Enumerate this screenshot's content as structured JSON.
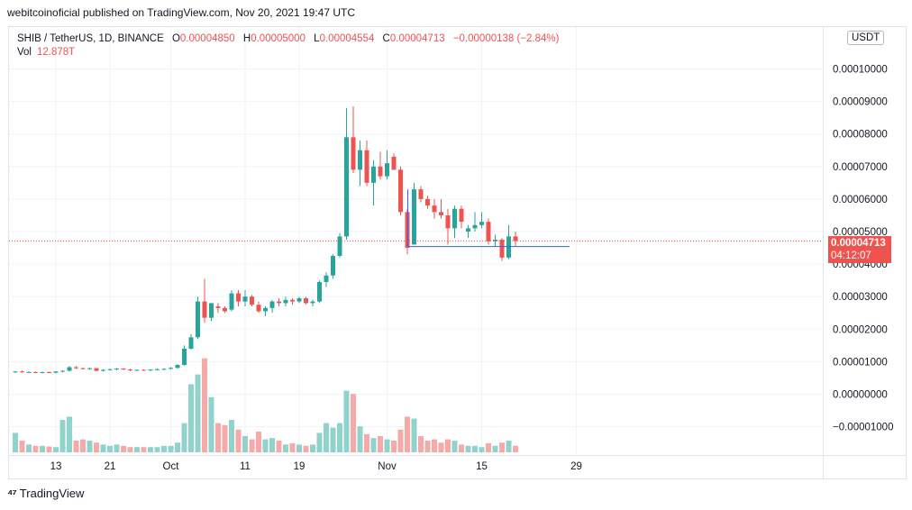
{
  "header": {
    "published_by": "webitcoinoficial published on TradingView.com, Nov 20, 2021 19:47 UTC"
  },
  "legend": {
    "symbol": "SHIB / TetherUS, 1D, BINANCE",
    "open_label": "O",
    "open": "0.00004850",
    "high_label": "H",
    "high": "0.00005000",
    "low_label": "L",
    "low": "0.00004554",
    "close_label": "C",
    "close": "0.00004713",
    "change": "−0.00000138 (−2.84%)",
    "vol_label": "Vol",
    "vol": "12.878T"
  },
  "axis": {
    "currency": "USDT",
    "price_badge": "0.00004713",
    "countdown": "04:12:07"
  },
  "footer": {
    "brand": "TradingView"
  },
  "colors": {
    "up": "#26a69a",
    "down": "#ef5350",
    "up_vol": "#92d2cc",
    "down_vol": "#f7a9a7",
    "hline": "#2962ff"
  },
  "chart_data": {
    "type": "candlestick",
    "title": "SHIB / TetherUS, 1D, BINANCE",
    "y_ticks": [
      -1e-05,
      0.0,
      1e-05,
      2e-05,
      3e-05,
      4e-05,
      5e-05,
      6e-05,
      7e-05,
      8e-05,
      9e-05,
      0.0001
    ],
    "y_tick_labels": [
      "−0.00001000",
      "0.00000000",
      "0.00001000",
      "0.00002000",
      "0.00003000",
      "0.00004000",
      "0.00005000",
      "0.00006000",
      "0.00007000",
      "0.00008000",
      "0.00009000",
      "0.00010000"
    ],
    "x_ticks": [
      {
        "i": 6,
        "label": "13"
      },
      {
        "i": 14,
        "label": "21"
      },
      {
        "i": 23,
        "label": "Oct"
      },
      {
        "i": 34,
        "label": "11"
      },
      {
        "i": 42,
        "label": "19"
      },
      {
        "i": 55,
        "label": "Nov"
      },
      {
        "i": 69,
        "label": "15"
      },
      {
        "i": 83,
        "label": "29"
      }
    ],
    "horizontal_line": {
      "price": 4.54e-05,
      "from": 58,
      "to": 82
    },
    "last_price": 4.713e-05,
    "candles": [
      {
        "o": 6.8e-06,
        "h": 7.1e-06,
        "l": 6.5e-06,
        "c": 7e-06,
        "v": 0.3
      },
      {
        "o": 7e-06,
        "h": 7.3e-06,
        "l": 6.6e-06,
        "c": 6.8e-06,
        "v": 0.18
      },
      {
        "o": 6.8e-06,
        "h": 7e-06,
        "l": 6.5e-06,
        "c": 6.8e-06,
        "v": 0.12
      },
      {
        "o": 6.8e-06,
        "h": 7e-06,
        "l": 6.5e-06,
        "c": 6.7e-06,
        "v": 0.1
      },
      {
        "o": 6.7e-06,
        "h": 7e-06,
        "l": 6.4e-06,
        "c": 6.8e-06,
        "v": 0.1
      },
      {
        "o": 6.8e-06,
        "h": 7e-06,
        "l": 6.5e-06,
        "c": 6.6e-06,
        "v": 0.09
      },
      {
        "o": 6.6e-06,
        "h": 7.1e-06,
        "l": 6.4e-06,
        "c": 7e-06,
        "v": 0.08
      },
      {
        "o": 7e-06,
        "h": 7.3e-06,
        "l": 6.7e-06,
        "c": 7.2e-06,
        "v": 0.5
      },
      {
        "o": 7.2e-06,
        "h": 8.7e-06,
        "l": 7e-06,
        "c": 8.3e-06,
        "v": 0.55
      },
      {
        "o": 8.3e-06,
        "h": 8.7e-06,
        "l": 7.7e-06,
        "c": 8e-06,
        "v": 0.18
      },
      {
        "o": 8e-06,
        "h": 8.2e-06,
        "l": 7.6e-06,
        "c": 7.8e-06,
        "v": 0.2
      },
      {
        "o": 7.8e-06,
        "h": 8.2e-06,
        "l": 7.5e-06,
        "c": 8e-06,
        "v": 0.18
      },
      {
        "o": 8e-06,
        "h": 8.1e-06,
        "l": 7e-06,
        "c": 7.2e-06,
        "v": 0.15
      },
      {
        "o": 7.2e-06,
        "h": 7.7e-06,
        "l": 7e-06,
        "c": 7.5e-06,
        "v": 0.12
      },
      {
        "o": 7.5e-06,
        "h": 7.9e-06,
        "l": 7.2e-06,
        "c": 7.7e-06,
        "v": 0.1
      },
      {
        "o": 7.7e-06,
        "h": 8e-06,
        "l": 7.3e-06,
        "c": 7.9e-06,
        "v": 0.12
      },
      {
        "o": 7.9e-06,
        "h": 8e-06,
        "l": 7.4e-06,
        "c": 7.6e-06,
        "v": 0.1
      },
      {
        "o": 7.6e-06,
        "h": 7.8e-06,
        "l": 7.1e-06,
        "c": 7.3e-06,
        "v": 0.08
      },
      {
        "o": 7.3e-06,
        "h": 7.6e-06,
        "l": 7.1e-06,
        "c": 7.5e-06,
        "v": 0.08
      },
      {
        "o": 7.5e-06,
        "h": 7.7e-06,
        "l": 7.2e-06,
        "c": 7.4e-06,
        "v": 0.08
      },
      {
        "o": 7.4e-06,
        "h": 7.7e-06,
        "l": 7.1e-06,
        "c": 7.6e-06,
        "v": 0.08
      },
      {
        "o": 7.6e-06,
        "h": 7.9e-06,
        "l": 7.3e-06,
        "c": 7.7e-06,
        "v": 0.08
      },
      {
        "o": 7.7e-06,
        "h": 8e-06,
        "l": 7.4e-06,
        "c": 7.8e-06,
        "v": 0.1
      },
      {
        "o": 7.8e-06,
        "h": 8.3e-06,
        "l": 7.6e-06,
        "c": 8.1e-06,
        "v": 0.1
      },
      {
        "o": 8.1e-06,
        "h": 9.2e-06,
        "l": 7.9e-06,
        "c": 9e-06,
        "v": 0.15
      },
      {
        "o": 9e-06,
        "h": 1.5e-05,
        "l": 8.8e-06,
        "c": 1.4e-05,
        "v": 0.45
      },
      {
        "o": 1.4e-05,
        "h": 1.85e-05,
        "l": 1.37e-05,
        "c": 1.75e-05,
        "v": 1.05
      },
      {
        "o": 1.75e-05,
        "h": 3e-05,
        "l": 1.7e-05,
        "c": 2.85e-05,
        "v": 1.2
      },
      {
        "o": 2.85e-05,
        "h": 3.55e-05,
        "l": 2.2e-05,
        "c": 2.35e-05,
        "v": 1.45
      },
      {
        "o": 2.35e-05,
        "h": 2.8e-05,
        "l": 2.25e-05,
        "c": 2.8e-05,
        "v": 0.85
      },
      {
        "o": 2.7e-05,
        "h": 2.8e-05,
        "l": 2.5e-05,
        "c": 2.65e-05,
        "v": 0.45
      },
      {
        "o": 2.65e-05,
        "h": 2.7e-05,
        "l": 2.5e-05,
        "c": 2.55e-05,
        "v": 0.42
      },
      {
        "o": 2.6e-05,
        "h": 3.2e-05,
        "l": 2.55e-05,
        "c": 3.1e-05,
        "v": 0.5
      },
      {
        "o": 3.1e-05,
        "h": 3.2e-05,
        "l": 2.7e-05,
        "c": 2.85e-05,
        "v": 0.35
      },
      {
        "o": 2.85e-05,
        "h": 3.2e-05,
        "l": 2.7e-05,
        "c": 3e-05,
        "v": 0.25
      },
      {
        "o": 3e-05,
        "h": 3.05e-05,
        "l": 2.7e-05,
        "c": 2.75e-05,
        "v": 0.2
      },
      {
        "o": 2.75e-05,
        "h": 2.85e-05,
        "l": 2.5e-05,
        "c": 2.55e-05,
        "v": 0.32
      },
      {
        "o": 2.55e-05,
        "h": 2.7e-05,
        "l": 2.4e-05,
        "c": 2.65e-05,
        "v": 0.2
      },
      {
        "o": 2.65e-05,
        "h": 2.9e-05,
        "l": 2.5e-05,
        "c": 2.85e-05,
        "v": 0.22
      },
      {
        "o": 2.85e-05,
        "h": 2.95e-05,
        "l": 2.7e-05,
        "c": 2.8e-05,
        "v": 0.18
      },
      {
        "o": 2.8e-05,
        "h": 3e-05,
        "l": 2.7e-05,
        "c": 2.9e-05,
        "v": 0.12
      },
      {
        "o": 2.9e-05,
        "h": 2.95e-05,
        "l": 2.75e-05,
        "c": 2.85e-05,
        "v": 0.14
      },
      {
        "o": 2.85e-05,
        "h": 3e-05,
        "l": 2.8e-05,
        "c": 2.95e-05,
        "v": 0.12
      },
      {
        "o": 2.95e-05,
        "h": 3e-05,
        "l": 2.75e-05,
        "c": 2.8e-05,
        "v": 0.1
      },
      {
        "o": 2.8e-05,
        "h": 2.9e-05,
        "l": 2.7e-05,
        "c": 2.85e-05,
        "v": 0.12
      },
      {
        "o": 2.85e-05,
        "h": 3.5e-05,
        "l": 2.8e-05,
        "c": 3.45e-05,
        "v": 0.3
      },
      {
        "o": 3.45e-05,
        "h": 3.75e-05,
        "l": 3.3e-05,
        "c": 3.65e-05,
        "v": 0.45
      },
      {
        "o": 3.65e-05,
        "h": 4.3e-05,
        "l": 3.55e-05,
        "c": 4.25e-05,
        "v": 0.38
      },
      {
        "o": 4.25e-05,
        "h": 4.95e-05,
        "l": 4.2e-05,
        "c": 4.85e-05,
        "v": 0.45
      },
      {
        "o": 4.85e-05,
        "h": 8.8e-05,
        "l": 4.75e-05,
        "c": 7.9e-05,
        "v": 0.95
      },
      {
        "o": 7.9e-05,
        "h": 8.85e-05,
        "l": 6.8e-05,
        "c": 6.9e-05,
        "v": 0.9
      },
      {
        "o": 6.9e-05,
        "h": 7.8e-05,
        "l": 6.4e-05,
        "c": 7.5e-05,
        "v": 0.4
      },
      {
        "o": 7.5e-05,
        "h": 7.8e-05,
        "l": 6.4e-05,
        "c": 6.5e-05,
        "v": 0.28
      },
      {
        "o": 6.5e-05,
        "h": 7.2e-05,
        "l": 5.8e-05,
        "c": 7e-05,
        "v": 0.22
      },
      {
        "o": 7e-05,
        "h": 7.45e-05,
        "l": 6.6e-05,
        "c": 6.7e-05,
        "v": 0.25
      },
      {
        "o": 6.7e-05,
        "h": 7.5e-05,
        "l": 6.6e-05,
        "c": 7.1e-05,
        "v": 0.2
      },
      {
        "o": 7.3e-05,
        "h": 7.4e-05,
        "l": 6.9e-05,
        "c": 6.9e-05,
        "v": 0.18
      },
      {
        "o": 6.9e-05,
        "h": 7e-05,
        "l": 5.5e-05,
        "c": 5.6e-05,
        "v": 0.35
      },
      {
        "o": 5.6e-05,
        "h": 5.7e-05,
        "l": 4.3e-05,
        "c": 4.5e-05,
        "v": 0.55
      },
      {
        "o": 4.6e-05,
        "h": 6.5e-05,
        "l": 4.6e-05,
        "c": 6.3e-05,
        "v": 0.52
      },
      {
        "o": 6.3e-05,
        "h": 6.4e-05,
        "l": 5.9e-05,
        "c": 6e-05,
        "v": 0.25
      },
      {
        "o": 6e-05,
        "h": 6.1e-05,
        "l": 5.7e-05,
        "c": 5.8e-05,
        "v": 0.18
      },
      {
        "o": 5.8e-05,
        "h": 6e-05,
        "l": 5.4e-05,
        "c": 5.6e-05,
        "v": 0.2
      },
      {
        "o": 5.6e-05,
        "h": 6e-05,
        "l": 5.4e-05,
        "c": 5.5e-05,
        "v": 0.15
      },
      {
        "o": 5.5e-05,
        "h": 5.7e-05,
        "l": 4.6e-05,
        "c": 5.1e-05,
        "v": 0.2
      },
      {
        "o": 5.1e-05,
        "h": 5.8e-05,
        "l": 4.8e-05,
        "c": 5.7e-05,
        "v": 0.18
      },
      {
        "o": 5.7e-05,
        "h": 5.8e-05,
        "l": 5.1e-05,
        "c": 5.3e-05,
        "v": 0.12
      },
      {
        "o": 5e-05,
        "h": 5.2e-05,
        "l": 4.8e-05,
        "c": 5.1e-05,
        "v": 0.1
      },
      {
        "o": 5.1e-05,
        "h": 5.6e-05,
        "l": 5e-05,
        "c": 5.2e-05,
        "v": 0.1
      },
      {
        "o": 5.2e-05,
        "h": 5.6e-05,
        "l": 5.1e-05,
        "c": 5.3e-05,
        "v": 0.08
      },
      {
        "o": 5.3e-05,
        "h": 5.4e-05,
        "l": 4.6e-05,
        "c": 4.7e-05,
        "v": 0.14
      },
      {
        "o": 4.7e-05,
        "h": 4.9e-05,
        "l": 4.55e-05,
        "c": 4.75e-05,
        "v": 0.1
      },
      {
        "o": 4.75e-05,
        "h": 4.8e-05,
        "l": 4.1e-05,
        "c": 4.2e-05,
        "v": 0.15
      },
      {
        "o": 4.2e-05,
        "h": 5.2e-05,
        "l": 4.15e-05,
        "c": 4.85e-05,
        "v": 0.18
      },
      {
        "o": 4.85e-05,
        "h": 5e-05,
        "l": 4.55e-05,
        "c": 4.71e-05,
        "v": 0.1
      }
    ]
  }
}
